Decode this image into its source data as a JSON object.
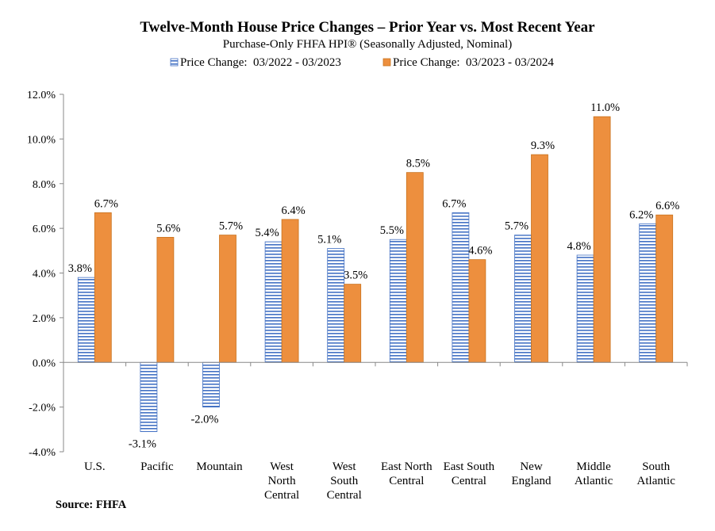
{
  "chart_data": {
    "type": "bar",
    "title": "Twelve-Month House Price Changes – Prior Year vs. Most Recent Year",
    "subtitle": "Purchase-Only FHFA HPI® (Seasonally Adjusted, Nominal)",
    "source": "Source: FHFA",
    "legend_position": "top",
    "grid": false,
    "ylim": [
      -4,
      12
    ],
    "y_ticks": [
      "-4.0%",
      "-2.0%",
      "0.0%",
      "2.0%",
      "4.0%",
      "6.0%",
      "8.0%",
      "10.0%",
      "12.0%"
    ],
    "categories": [
      [
        "U.S."
      ],
      [
        "Pacific"
      ],
      [
        "Mountain"
      ],
      [
        "West",
        "North",
        "Central"
      ],
      [
        "West",
        "South",
        "Central"
      ],
      [
        "East North",
        "Central"
      ],
      [
        "East South",
        "Central"
      ],
      [
        "New",
        "England"
      ],
      [
        "Middle",
        "Atlantic"
      ],
      [
        "South",
        "Atlantic"
      ]
    ],
    "series": [
      {
        "name": "Price Change:  03/2022 - 03/2023",
        "color": "#4472C4",
        "pattern": "horizontal-stripes",
        "values": [
          3.8,
          -3.1,
          -2.0,
          5.4,
          5.1,
          5.5,
          6.7,
          5.7,
          4.8,
          6.2
        ],
        "labels": [
          "3.8%",
          "-3.1%",
          "-2.0%",
          "5.4%",
          "5.1%",
          "5.5%",
          "6.7%",
          "5.7%",
          "4.8%",
          "6.2%"
        ]
      },
      {
        "name": "Price Change:  03/2023 - 03/2024",
        "color": "#ED8F3E",
        "pattern": "solid",
        "values": [
          6.7,
          5.6,
          5.7,
          6.4,
          3.5,
          8.5,
          4.6,
          9.3,
          11.0,
          6.6
        ],
        "labels": [
          "6.7%",
          "5.6%",
          "5.7%",
          "6.4%",
          "3.5%",
          "8.5%",
          "4.6%",
          "9.3%",
          "11.0%",
          "6.6%"
        ]
      }
    ]
  }
}
